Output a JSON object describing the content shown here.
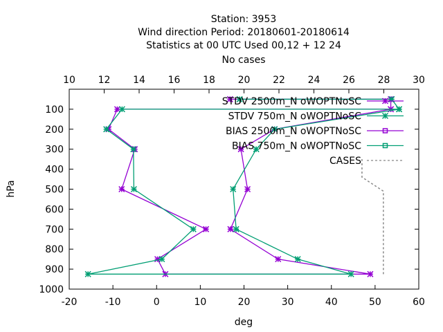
{
  "chart_data": {
    "type": "line",
    "title_lines": [
      "Station:      3953",
      "Wind direction  Period: 20180601-20180614",
      "Statistics at 00 UTC  Used  00,12  + 12 24",
      "No cases"
    ],
    "xlabel": "deg",
    "ylabel": "hPa",
    "x2label": "",
    "xlim": [
      -20,
      60
    ],
    "x_ticks": [
      "-20",
      "-10",
      "0",
      "10",
      "20",
      "30",
      "40",
      "50",
      "60"
    ],
    "x2lim": [
      10,
      30
    ],
    "x2_ticks": [
      "10",
      "12",
      "14",
      "16",
      "18",
      "20",
      "22",
      "24",
      "26",
      "28",
      "30"
    ],
    "ylim": [
      1000,
      0
    ],
    "y_ticks": [
      "100",
      "200",
      "300",
      "400",
      "500",
      "600",
      "700",
      "800",
      "900",
      "1000"
    ],
    "legend_position": "top-right",
    "series": [
      {
        "name": "STDV 2500m_N oWOPTNoSC",
        "color": "#9400d3",
        "marker": "x-plus",
        "points": [
          [
            16.8,
            50
          ],
          [
            53.6,
            50
          ],
          [
            53.6,
            100
          ],
          [
            -9.0,
            100
          ],
          [
            -11.0,
            200
          ],
          [
            -5.0,
            300
          ],
          [
            -8.0,
            500
          ],
          [
            11.3,
            700
          ],
          [
            0.2,
            850
          ],
          [
            2.0,
            925
          ],
          [
            48.9,
            925
          ],
          [
            27.8,
            850
          ],
          [
            16.9,
            700
          ],
          [
            20.8,
            500
          ],
          [
            19.3,
            300
          ],
          [
            27.0,
            200
          ],
          [
            53.6,
            100
          ]
        ]
      },
      {
        "name": "STDV 750m_N oWOPTNoSC",
        "color": "#009e73",
        "marker": "x-plus",
        "points": [
          [
            19.0,
            50
          ],
          [
            53.8,
            50
          ],
          [
            55.5,
            100
          ],
          [
            -7.9,
            100
          ],
          [
            -11.5,
            200
          ],
          [
            -5.3,
            300
          ],
          [
            -5.2,
            500
          ],
          [
            8.4,
            700
          ],
          [
            1.2,
            850
          ],
          [
            -15.7,
            925
          ],
          [
            44.5,
            925
          ],
          [
            32.3,
            850
          ],
          [
            18.2,
            700
          ],
          [
            17.5,
            500
          ],
          [
            22.8,
            300
          ],
          [
            27.0,
            200
          ],
          [
            55.5,
            100
          ]
        ]
      },
      {
        "name": "BIAS 2500m_N oWOPTNoSC",
        "color": "#9400d3",
        "marker": "square"
      },
      {
        "name": "BIAS 750m_N oWOPTNoSC",
        "color": "#009e73",
        "marker": "square"
      },
      {
        "name": "CASES",
        "color": "#888888",
        "marker": "none",
        "dashed": true,
        "points": [
          [
            51.9,
            925
          ],
          [
            51.9,
            510
          ],
          [
            47.0,
            440
          ],
          [
            47.0,
            340
          ]
        ]
      }
    ]
  }
}
